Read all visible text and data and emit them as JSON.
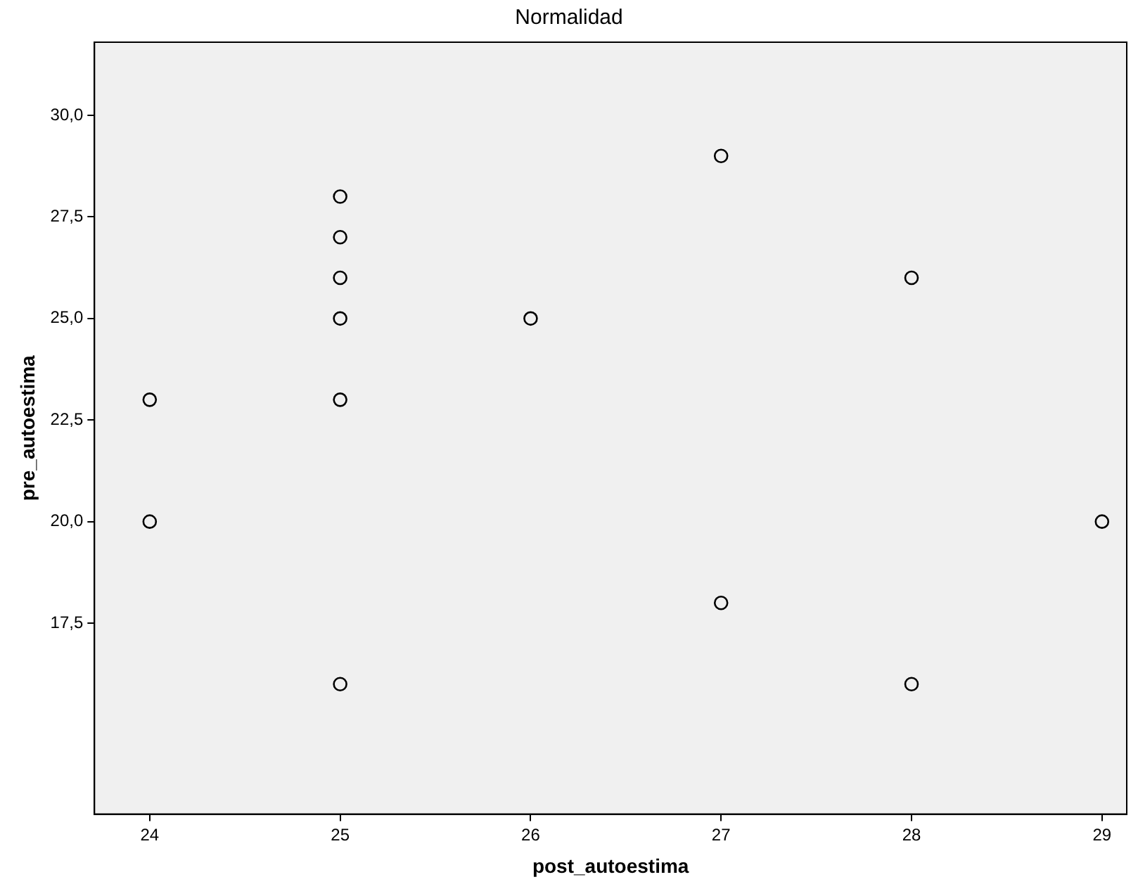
{
  "chart_data": {
    "type": "scatter",
    "title": "Normalidad",
    "xlabel": "post_autoestima",
    "ylabel": "pre_autoestima",
    "x": [
      24,
      24,
      25,
      25,
      25,
      25,
      25,
      25,
      26,
      27,
      27,
      28,
      28,
      29
    ],
    "series": [
      {
        "color": "#000000",
        "values": [
          23,
          20,
          28,
          27,
          26,
          25,
          23,
          16,
          25,
          29,
          18,
          26,
          16,
          20
        ]
      }
    ],
    "xlim": [
      23.71,
      29.13
    ],
    "xticks": [
      24,
      25,
      26,
      27,
      28,
      29
    ],
    "ylim": [
      12.8,
      31.8
    ],
    "yticks": [
      {
        "value": 17.5,
        "label": "17,5"
      },
      {
        "value": 20,
        "label": "20,0"
      },
      {
        "value": 22.5,
        "label": "22,5"
      },
      {
        "value": 25,
        "label": "25,0"
      },
      {
        "value": 27.5,
        "label": "27,5"
      },
      {
        "value": 30,
        "label": "30,0"
      }
    ],
    "grid": false,
    "legend": false,
    "marker": "circle"
  }
}
